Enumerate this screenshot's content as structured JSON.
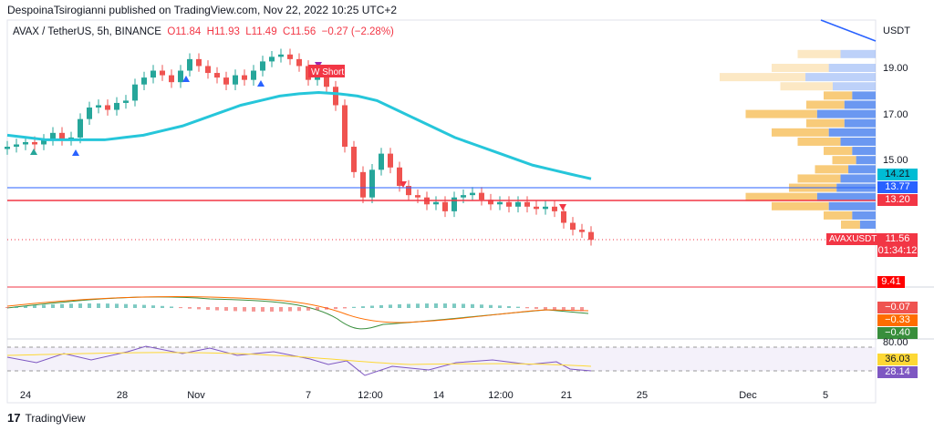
{
  "header": {
    "published": "DespoinaTsirogianni published on TradingView.com, Nov 22, 2022 10:25 UTC+2"
  },
  "legend": {
    "symbol": "AVAX / TetherUS, 5h, BINANCE",
    "open": "O11.84",
    "high": "H11.93",
    "low": "L11.49",
    "close": "C11.56",
    "change": "−0.27 (−2.28%)"
  },
  "price_axis": {
    "currency": "USDT",
    "labels": [
      "19.00",
      "17.00",
      "15.00"
    ]
  },
  "tags": {
    "ma": "14.21",
    "blue_line": "13.77",
    "red_line": "13.20",
    "last": "11.56",
    "countdown": "01:34:12",
    "symbol": "AVAXUSDT",
    "level": "9.41",
    "macd1": "−0.07",
    "macd2": "−0.33",
    "macd3": "−0.40",
    "rsi_top": "80.00",
    "rsi1": "36.03",
    "rsi2": "28.14"
  },
  "signal": {
    "label": "W Short"
  },
  "time_axis": [
    "24",
    "28",
    "Nov",
    "7",
    "12:00",
    "14",
    "12:00",
    "21",
    "25",
    "Dec",
    "5"
  ],
  "brand": "TradingView",
  "colors": {
    "up": "#26a69a",
    "down": "#ef5350",
    "ma": "#26c6da",
    "blue": "#2962ff",
    "red": "#f23645"
  },
  "chart_data": {
    "type": "candlestick",
    "closes": [
      15.6,
      15.7,
      15.8,
      15.7,
      15.9,
      16.2,
      15.9,
      16.0,
      16.8,
      17.3,
      17.4,
      17.2,
      17.5,
      17.6,
      18.3,
      18.6,
      18.9,
      18.7,
      18.4,
      18.9,
      19.4,
      19.1,
      18.8,
      18.6,
      18.3,
      18.7,
      18.5,
      18.9,
      19.3,
      19.5,
      19.6,
      19.4,
      19.1,
      18.5,
      18.7,
      18.2,
      17.4,
      15.6,
      14.5,
      13.4,
      14.6,
      15.3,
      14.7,
      13.9,
      13.5,
      13.4,
      13.1,
      13.2,
      12.8,
      13.4,
      13.5,
      13.6,
      13.3,
      13.1,
      13.2,
      13.0,
      13.2,
      13.0,
      12.9,
      13.0,
      12.8,
      12.3,
      12.0,
      11.9,
      11.56
    ],
    "ma": [
      16.1,
      16.0,
      15.9,
      15.9,
      15.9,
      15.9,
      16.0,
      16.1,
      16.3,
      16.5,
      16.8,
      17.1,
      17.4,
      17.6,
      17.8,
      17.9,
      17.95,
      17.9,
      17.8,
      17.6,
      17.2,
      16.8,
      16.4,
      16.0,
      15.7,
      15.4,
      15.1,
      14.8,
      14.6,
      14.4,
      14.21
    ],
    "horizontal_lines": [
      13.77,
      13.2
    ],
    "volume_profile": [
      {
        "price": 19.6,
        "v": 0.45
      },
      {
        "price": 19.0,
        "v": 0.6
      },
      {
        "price": 18.6,
        "v": 0.9
      },
      {
        "price": 18.2,
        "v": 0.55
      },
      {
        "price": 17.8,
        "v": 0.3
      },
      {
        "price": 17.4,
        "v": 0.4
      },
      {
        "price": 17.0,
        "v": 0.75
      },
      {
        "price": 16.6,
        "v": 0.4
      },
      {
        "price": 16.2,
        "v": 0.6
      },
      {
        "price": 15.8,
        "v": 0.45
      },
      {
        "price": 15.4,
        "v": 0.3
      },
      {
        "price": 15.0,
        "v": 0.25
      },
      {
        "price": 14.6,
        "v": 0.35
      },
      {
        "price": 14.2,
        "v": 0.45
      },
      {
        "price": 13.8,
        "v": 0.5
      },
      {
        "price": 13.4,
        "v": 0.75
      },
      {
        "price": 13.0,
        "v": 0.6
      },
      {
        "price": 12.6,
        "v": 0.3
      },
      {
        "price": 12.2,
        "v": 0.2
      }
    ]
  }
}
